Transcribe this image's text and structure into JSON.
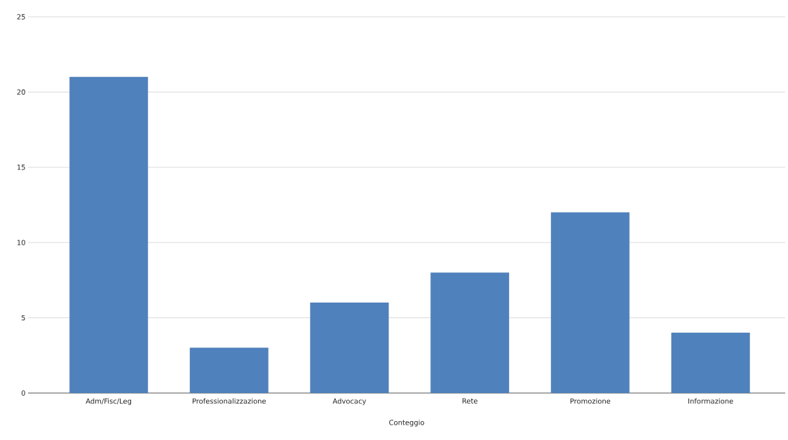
{
  "chart_data": {
    "type": "bar",
    "xlabel": "Conteggio",
    "categories": [
      "Adm/Fisc/Leg",
      "Professionalizzazione",
      "Advocacy",
      "Rete",
      "Promozione",
      "Informazione"
    ],
    "values": [
      21,
      3,
      6,
      8,
      12,
      4
    ],
    "color": "#4f81bd",
    "ylim": [
      0,
      25
    ],
    "yticks": [
      0,
      5,
      10,
      15,
      20,
      25
    ],
    "grid": "y"
  }
}
